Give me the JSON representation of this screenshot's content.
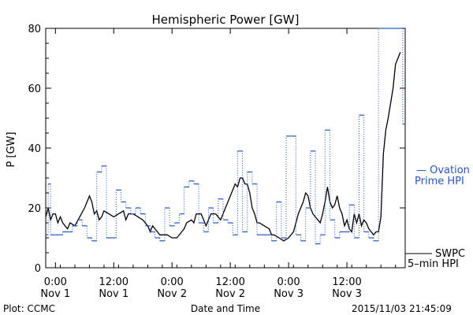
{
  "chart_data": {
    "type": "line",
    "title": "Hemispheric Power [GW]",
    "ylabel": "P [GW]",
    "xlabel": "Date and Time",
    "ylim": [
      0,
      80
    ],
    "xlim_hours": [
      -2,
      72
    ],
    "y_ticks": [
      0,
      20,
      40,
      60,
      80
    ],
    "x_ticks": [
      {
        "t": 0,
        "time": "0:00",
        "date": "Nov 1"
      },
      {
        "t": 12,
        "time": "12:00",
        "date": "Nov 1"
      },
      {
        "t": 24,
        "time": "0:00",
        "date": "Nov 2"
      },
      {
        "t": 36,
        "time": "12:00",
        "date": "Nov 2"
      },
      {
        "t": 48,
        "time": "0:00",
        "date": "Nov 3"
      },
      {
        "t": 60,
        "time": "12:00",
        "date": "Nov 3"
      }
    ],
    "grid": false,
    "series": [
      {
        "name": "SWPC 5-min HPI",
        "color": "#000000",
        "style": "solid",
        "points": [
          [
            -2,
            17
          ],
          [
            -1.5,
            20
          ],
          [
            -1,
            16
          ],
          [
            -0.5,
            18
          ],
          [
            0,
            18
          ],
          [
            0.5,
            15
          ],
          [
            1,
            17
          ],
          [
            1.5,
            15
          ],
          [
            2,
            14
          ],
          [
            2.5,
            13
          ],
          [
            3,
            15
          ],
          [
            4,
            14
          ],
          [
            5,
            17
          ],
          [
            6,
            20
          ],
          [
            7,
            24
          ],
          [
            7.5,
            22
          ],
          [
            8,
            18
          ],
          [
            8.5,
            19
          ],
          [
            9,
            16
          ],
          [
            9.5,
            17
          ],
          [
            10,
            19
          ],
          [
            11,
            18
          ],
          [
            12,
            17
          ],
          [
            13,
            18
          ],
          [
            14,
            19
          ],
          [
            14.5,
            16
          ],
          [
            15,
            18
          ],
          [
            16,
            18
          ],
          [
            17,
            17
          ],
          [
            18,
            16
          ],
          [
            19,
            14
          ],
          [
            19.5,
            12
          ],
          [
            20,
            14
          ],
          [
            21,
            12
          ],
          [
            21.5,
            11
          ],
          [
            22,
            11
          ],
          [
            23,
            11
          ],
          [
            24,
            10
          ],
          [
            25,
            10
          ],
          [
            26,
            12
          ],
          [
            26.5,
            13
          ],
          [
            27,
            15
          ],
          [
            28,
            16
          ],
          [
            28.5,
            15
          ],
          [
            29,
            18
          ],
          [
            30,
            18
          ],
          [
            31,
            14
          ],
          [
            31.5,
            16
          ],
          [
            32,
            18
          ],
          [
            33,
            18
          ],
          [
            34,
            16
          ],
          [
            35,
            20
          ],
          [
            36,
            24
          ],
          [
            37,
            28
          ],
          [
            37.5,
            27
          ],
          [
            38,
            30
          ],
          [
            38.5,
            30
          ],
          [
            39,
            28
          ],
          [
            39.5,
            28
          ],
          [
            40,
            25
          ],
          [
            40.5,
            20
          ],
          [
            41,
            18
          ],
          [
            41.5,
            15
          ],
          [
            42,
            15
          ],
          [
            43,
            14
          ],
          [
            44,
            13
          ],
          [
            44.5,
            11
          ],
          [
            45,
            11
          ],
          [
            46,
            10
          ],
          [
            47,
            9
          ],
          [
            48,
            10
          ],
          [
            49,
            12
          ],
          [
            49.5,
            15
          ],
          [
            50,
            18
          ],
          [
            51,
            22
          ],
          [
            51.5,
            25
          ],
          [
            52,
            24
          ],
          [
            52.5,
            20
          ],
          [
            53,
            18
          ],
          [
            53.5,
            17
          ],
          [
            54,
            16
          ],
          [
            54.5,
            15
          ],
          [
            55,
            18
          ],
          [
            55.5,
            22
          ],
          [
            56,
            27
          ],
          [
            56.5,
            22
          ],
          [
            57,
            20
          ],
          [
            57.5,
            21
          ],
          [
            58,
            24
          ],
          [
            58.5,
            20
          ],
          [
            59,
            18
          ],
          [
            59.5,
            14
          ],
          [
            60,
            16
          ],
          [
            60.5,
            13
          ],
          [
            61,
            12
          ],
          [
            61.5,
            18
          ],
          [
            62,
            15
          ],
          [
            62.5,
            18
          ],
          [
            63,
            14
          ],
          [
            63.5,
            16
          ],
          [
            64,
            15
          ],
          [
            64.5,
            13
          ],
          [
            65,
            12
          ],
          [
            65.5,
            11
          ],
          [
            66,
            12
          ],
          [
            66.5,
            12
          ],
          [
            67,
            17
          ],
          [
            67.5,
            38
          ],
          [
            68,
            46
          ],
          [
            68.5,
            50
          ],
          [
            69,
            55
          ],
          [
            69.5,
            60
          ],
          [
            70,
            68
          ],
          [
            70.5,
            70
          ],
          [
            71,
            72
          ]
        ]
      },
      {
        "name": "Ovation Prime HPI",
        "color": "#2255cc",
        "style": "steps",
        "points": [
          [
            -2,
            11
          ],
          [
            -1.5,
            28
          ],
          [
            -1,
            11
          ],
          [
            0,
            11
          ],
          [
            1.5,
            12
          ],
          [
            2.5,
            12
          ],
          [
            3.5,
            14
          ],
          [
            4.5,
            16
          ],
          [
            5.5,
            14
          ],
          [
            6.5,
            10
          ],
          [
            7.5,
            9
          ],
          [
            8.5,
            32
          ],
          [
            9.5,
            34
          ],
          [
            10.5,
            10
          ],
          [
            11.5,
            10
          ],
          [
            12.5,
            26
          ],
          [
            13.5,
            22
          ],
          [
            14.5,
            20
          ],
          [
            15.5,
            18
          ],
          [
            16.5,
            20
          ],
          [
            17.5,
            18
          ],
          [
            18.5,
            14
          ],
          [
            19.5,
            12
          ],
          [
            20.5,
            10
          ],
          [
            21.5,
            9
          ],
          [
            22.5,
            20
          ],
          [
            23.5,
            14
          ],
          [
            24.5,
            15
          ],
          [
            25.5,
            18
          ],
          [
            26.5,
            27
          ],
          [
            27.5,
            29
          ],
          [
            28.5,
            28
          ],
          [
            29.5,
            15
          ],
          [
            30.5,
            12
          ],
          [
            31.5,
            20
          ],
          [
            32.5,
            15
          ],
          [
            33.5,
            23
          ],
          [
            34.5,
            16
          ],
          [
            35.5,
            15
          ],
          [
            36.5,
            11
          ],
          [
            37.5,
            39
          ],
          [
            38.5,
            12
          ],
          [
            39.5,
            32
          ],
          [
            40.5,
            28
          ],
          [
            41.5,
            11
          ],
          [
            42.5,
            11
          ],
          [
            43.5,
            11
          ],
          [
            44.5,
            9
          ],
          [
            45.5,
            22
          ],
          [
            46.5,
            10
          ],
          [
            47.5,
            44
          ],
          [
            48.5,
            44
          ],
          [
            49.5,
            11
          ],
          [
            50.5,
            9
          ],
          [
            51.5,
            20
          ],
          [
            52.5,
            39
          ],
          [
            53.5,
            8
          ],
          [
            54.5,
            11
          ],
          [
            55.5,
            46
          ],
          [
            56.5,
            16
          ],
          [
            57.5,
            10
          ],
          [
            58.5,
            12
          ],
          [
            59.5,
            12
          ],
          [
            60.5,
            21
          ],
          [
            61.5,
            10
          ],
          [
            62.5,
            51
          ],
          [
            63.5,
            12
          ],
          [
            64.5,
            10
          ],
          [
            65.5,
            9
          ],
          [
            66.5,
            80
          ],
          [
            67.5,
            80
          ],
          [
            68.5,
            80
          ],
          [
            69.5,
            80
          ],
          [
            70.5,
            80
          ],
          [
            71.5,
            48
          ]
        ]
      }
    ],
    "legend": [
      {
        "line1": "— Ovation",
        "line2": "Prime HPI",
        "color": "#2255cc"
      },
      {
        "line1": "SWPC",
        "line2": "5–min HPI",
        "color": "#000000"
      }
    ]
  },
  "footer": {
    "left": "Plot: CCMC",
    "right": "2015/11/03 21:45:09"
  }
}
